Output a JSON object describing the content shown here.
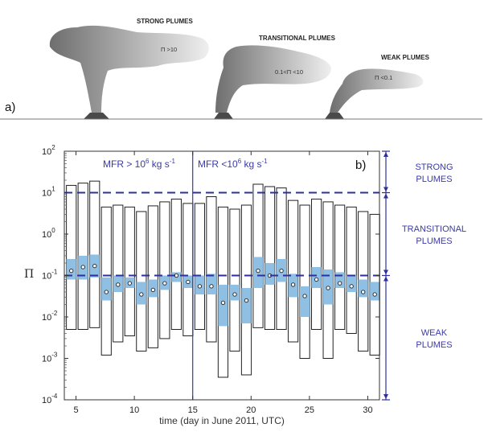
{
  "illustration": {
    "panel_label": "a)",
    "plumes": [
      {
        "title": "STRONG PLUMES",
        "condition": "Π >10"
      },
      {
        "title": "TRANSITIONAL PLUMES",
        "condition": "0.1<Π <10"
      },
      {
        "title": "WEAK PLUMES",
        "condition": "Π <0.1"
      }
    ]
  },
  "chart_data": {
    "type": "bar",
    "panel_label": "b)",
    "ylabel": "Π",
    "xlabel": "time (day in June 2011, UTC)",
    "yscale": "log",
    "ylim": [
      0.0001,
      100
    ],
    "xlim": [
      4,
      31
    ],
    "x_ticks": [
      "5",
      "10",
      "15",
      "20",
      "25",
      "30"
    ],
    "y_ticks": [
      {
        "mantissa": "10",
        "exponent": "2"
      },
      {
        "mantissa": "10",
        "exponent": "1"
      },
      {
        "mantissa": "10",
        "exponent": "0"
      },
      {
        "mantissa": "10",
        "exponent": "-1"
      },
      {
        "mantissa": "10",
        "exponent": "-2"
      },
      {
        "mantissa": "10",
        "exponent": "-3"
      },
      {
        "mantissa": "10",
        "exponent": "-4"
      }
    ],
    "thresholds": [
      10,
      0.1
    ],
    "divider_day": 15,
    "region_labels": {
      "left": {
        "text": "MFR > 10",
        "exp": "6",
        "unit": " kg s",
        "unit_exp": "-1"
      },
      "right": {
        "text": "MFR <10",
        "exp": "6",
        "unit": " kg s",
        "unit_exp": "-1"
      }
    },
    "categories": [
      {
        "line1": "STRONG",
        "line2": "PLUMES"
      },
      {
        "line1": "TRANSITIONAL",
        "line2": "PLUMES"
      },
      {
        "line1": "WEAK",
        "line2": "PLUMES"
      }
    ],
    "series": [
      {
        "day": 4.6,
        "min": 0.005,
        "max": 15,
        "q1": 0.08,
        "q3": 0.25,
        "median": 0.13
      },
      {
        "day": 5.6,
        "min": 0.005,
        "max": 17,
        "q1": 0.08,
        "q3": 0.3,
        "median": 0.16
      },
      {
        "day": 6.6,
        "min": 0.0055,
        "max": 19,
        "q1": 0.09,
        "q3": 0.32,
        "median": 0.17
      },
      {
        "day": 7.6,
        "min": 0.0012,
        "max": 4.5,
        "q1": 0.025,
        "q3": 0.09,
        "median": 0.04
      },
      {
        "day": 8.6,
        "min": 0.0025,
        "max": 5.0,
        "q1": 0.04,
        "q3": 0.1,
        "median": 0.06
      },
      {
        "day": 9.6,
        "min": 0.0035,
        "max": 4.5,
        "q1": 0.05,
        "q3": 0.09,
        "median": 0.065
      },
      {
        "day": 10.6,
        "min": 0.0015,
        "max": 3.5,
        "q1": 0.02,
        "q3": 0.07,
        "median": 0.035
      },
      {
        "day": 11.6,
        "min": 0.0018,
        "max": 4.8,
        "q1": 0.03,
        "q3": 0.08,
        "median": 0.045
      },
      {
        "day": 12.6,
        "min": 0.003,
        "max": 6.0,
        "q1": 0.045,
        "q3": 0.1,
        "median": 0.065
      },
      {
        "day": 13.6,
        "min": 0.005,
        "max": 7.0,
        "q1": 0.07,
        "q3": 0.12,
        "median": 0.1
      },
      {
        "day": 14.6,
        "min": 0.0035,
        "max": 5.5,
        "q1": 0.05,
        "q3": 0.1,
        "median": 0.07
      },
      {
        "day": 15.6,
        "min": 0.005,
        "max": 5.5,
        "q1": 0.035,
        "q3": 0.1,
        "median": 0.055
      },
      {
        "day": 16.6,
        "min": 0.0025,
        "max": 8.0,
        "q1": 0.035,
        "q3": 0.11,
        "median": 0.055
      },
      {
        "day": 17.6,
        "min": 0.00035,
        "max": 4.5,
        "q1": 0.006,
        "q3": 0.06,
        "median": 0.022
      },
      {
        "day": 18.6,
        "min": 0.0015,
        "max": 4.0,
        "q1": 0.025,
        "q3": 0.06,
        "median": 0.035
      },
      {
        "day": 19.6,
        "min": 0.0004,
        "max": 5.0,
        "q1": 0.007,
        "q3": 0.05,
        "median": 0.025
      },
      {
        "day": 20.6,
        "min": 0.0055,
        "max": 16,
        "q1": 0.05,
        "q3": 0.28,
        "median": 0.13
      },
      {
        "day": 21.6,
        "min": 0.005,
        "max": 14,
        "q1": 0.06,
        "q3": 0.2,
        "median": 0.1
      },
      {
        "day": 22.6,
        "min": 0.005,
        "max": 13,
        "q1": 0.07,
        "q3": 0.25,
        "median": 0.13
      },
      {
        "day": 23.6,
        "min": 0.0025,
        "max": 6.5,
        "q1": 0.03,
        "q3": 0.11,
        "median": 0.06
      },
      {
        "day": 24.6,
        "min": 0.001,
        "max": 5.0,
        "q1": 0.01,
        "q3": 0.055,
        "median": 0.032
      },
      {
        "day": 25.6,
        "min": 0.005,
        "max": 7.0,
        "q1": 0.05,
        "q3": 0.16,
        "median": 0.08
      },
      {
        "day": 26.6,
        "min": 0.001,
        "max": 6.0,
        "q1": 0.02,
        "q3": 0.14,
        "median": 0.05
      },
      {
        "day": 27.6,
        "min": 0.005,
        "max": 5.0,
        "q1": 0.05,
        "q3": 0.12,
        "median": 0.065
      },
      {
        "day": 28.6,
        "min": 0.004,
        "max": 4.5,
        "q1": 0.04,
        "q3": 0.1,
        "median": 0.055
      },
      {
        "day": 29.6,
        "min": 0.0015,
        "max": 3.5,
        "q1": 0.03,
        "q3": 0.08,
        "median": 0.04
      },
      {
        "day": 30.6,
        "min": 0.0012,
        "max": 3.0,
        "q1": 0.025,
        "q3": 0.07,
        "median": 0.035
      }
    ],
    "colors": {
      "iqr_fill": "#8fbfe3",
      "threshold": "#2f2fa0",
      "divider": "#3b3aa6",
      "outline": "#222222"
    }
  }
}
